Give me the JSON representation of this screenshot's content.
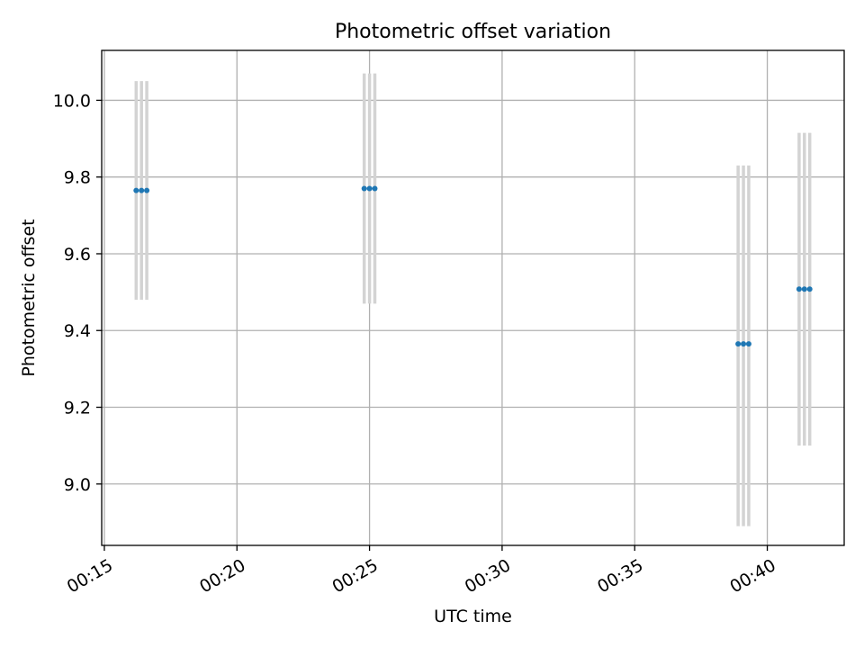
{
  "chart_data": {
    "type": "scatter",
    "title": "Photometric offset variation",
    "xlabel": "UTC time",
    "ylabel": "Photometric offset",
    "grid": true,
    "x_ticks": [
      "00:15",
      "00:20",
      "00:25",
      "00:30",
      "00:35",
      "00:40"
    ],
    "x_tick_minutes": [
      15,
      20,
      25,
      30,
      35,
      40
    ],
    "xlim_minutes": [
      14.9,
      42.9
    ],
    "y_ticks": [
      "9.0",
      "9.2",
      "9.4",
      "9.6",
      "9.8",
      "10.0"
    ],
    "y_tick_values": [
      9.0,
      9.2,
      9.4,
      9.6,
      9.8,
      10.0
    ],
    "ylim": [
      8.84,
      10.13
    ],
    "colors": {
      "point": "#1f77b4",
      "errorbar": "#d3d3d3",
      "grid": "#b0b0b0"
    },
    "series": [
      {
        "points": [
          {
            "x_minutes": 16.2,
            "y": 9.765,
            "err_low": 9.48,
            "err_high": 10.05
          },
          {
            "x_minutes": 16.4,
            "y": 9.765,
            "err_low": 9.48,
            "err_high": 10.05
          },
          {
            "x_minutes": 16.6,
            "y": 9.765,
            "err_low": 9.48,
            "err_high": 10.05
          },
          {
            "x_minutes": 24.8,
            "y": 9.77,
            "err_low": 9.47,
            "err_high": 10.07
          },
          {
            "x_minutes": 25.0,
            "y": 9.77,
            "err_low": 9.47,
            "err_high": 10.07
          },
          {
            "x_minutes": 25.2,
            "y": 9.77,
            "err_low": 9.47,
            "err_high": 10.07
          },
          {
            "x_minutes": 38.9,
            "y": 9.365,
            "err_low": 8.89,
            "err_high": 9.83
          },
          {
            "x_minutes": 39.1,
            "y": 9.365,
            "err_low": 8.89,
            "err_high": 9.83
          },
          {
            "x_minutes": 39.3,
            "y": 9.365,
            "err_low": 8.89,
            "err_high": 9.83
          },
          {
            "x_minutes": 41.2,
            "y": 9.508,
            "err_low": 9.1,
            "err_high": 9.915
          },
          {
            "x_minutes": 41.4,
            "y": 9.508,
            "err_low": 9.1,
            "err_high": 9.915
          },
          {
            "x_minutes": 41.6,
            "y": 9.508,
            "err_low": 9.1,
            "err_high": 9.915
          }
        ]
      }
    ]
  }
}
